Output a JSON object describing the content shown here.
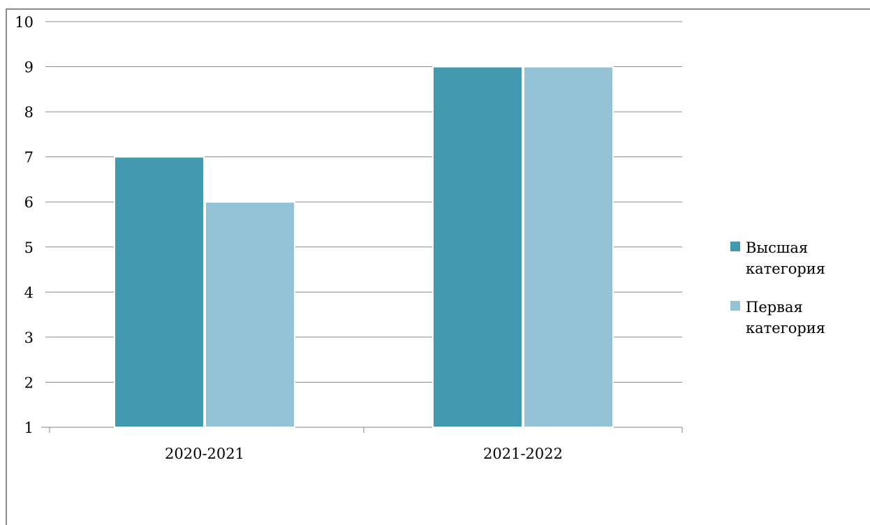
{
  "chart_data": {
    "type": "bar",
    "title": "",
    "xlabel": "",
    "ylabel": "",
    "categories": [
      "2020-2021",
      "2021-2022"
    ],
    "series": [
      {
        "name": "Высшая категория",
        "name_lines": [
          "Высшая",
          "категория"
        ],
        "values": [
          7,
          9
        ],
        "color": "#4399b0"
      },
      {
        "name": "Первая категория",
        "name_lines": [
          "Первая",
          "категория"
        ],
        "values": [
          6,
          9
        ],
        "color": "#93c3d5"
      }
    ],
    "ylim": [
      1,
      10
    ],
    "yticks": [
      1,
      2,
      3,
      4,
      5,
      6,
      7,
      8,
      9,
      10
    ],
    "grid": true,
    "legend": "right"
  }
}
